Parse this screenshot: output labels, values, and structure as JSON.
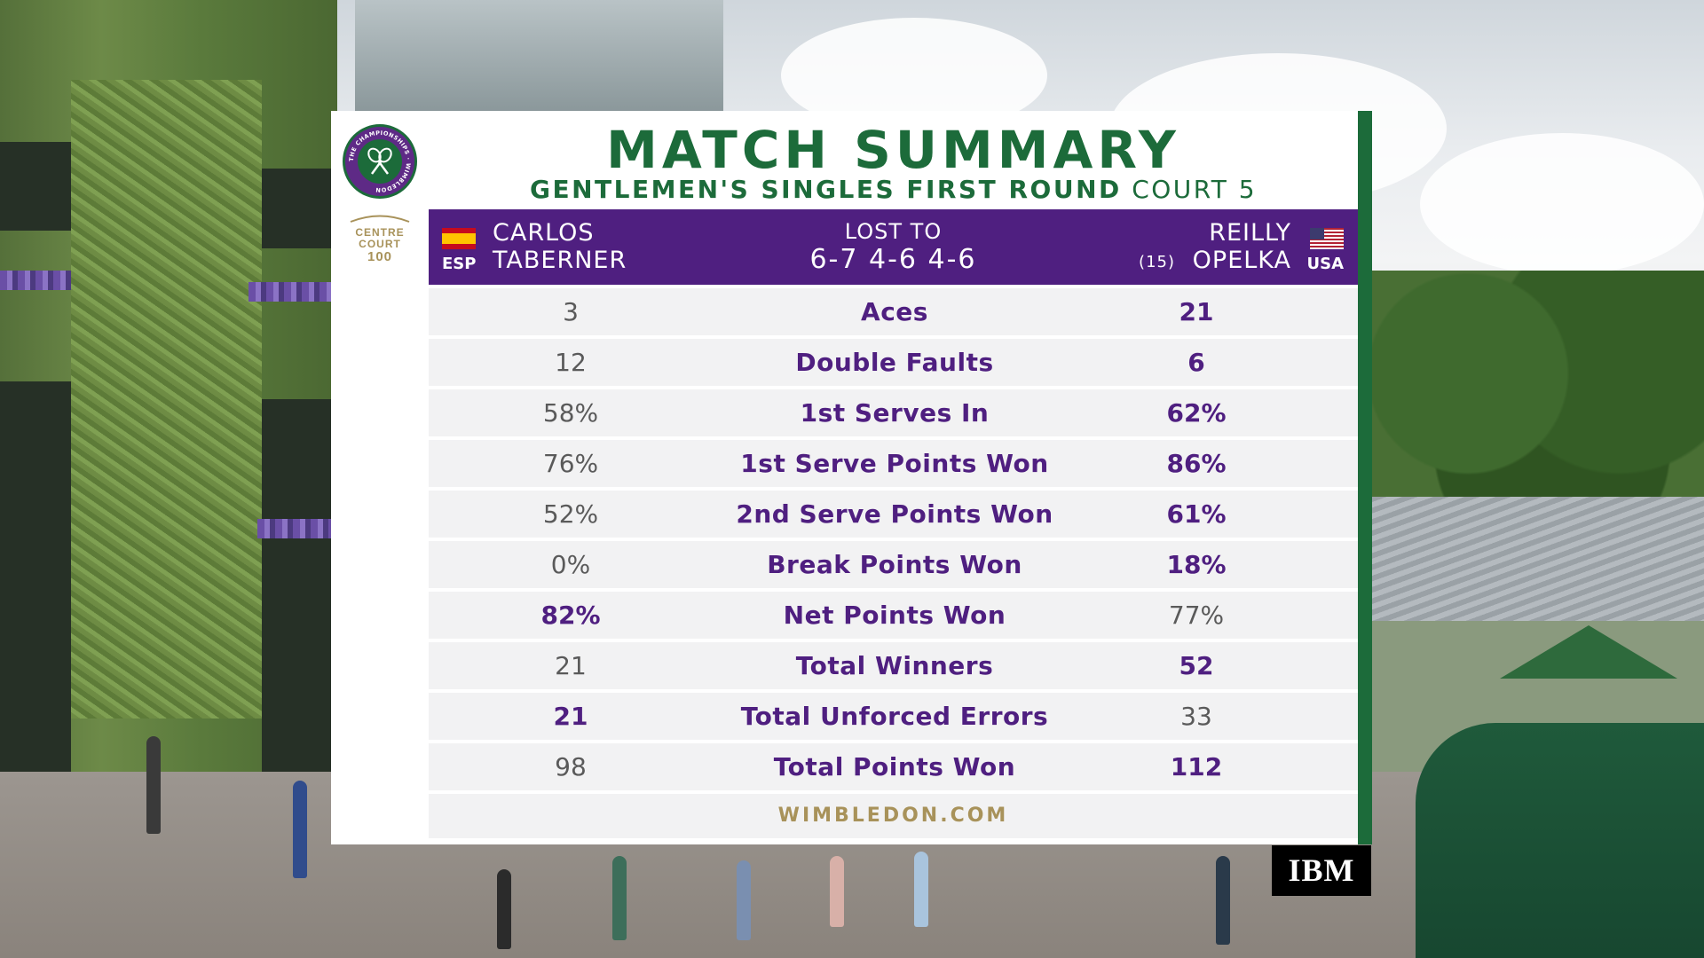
{
  "header": {
    "title": "MATCH SUMMARY",
    "event": "GENTLEMEN'S SINGLES FIRST ROUND",
    "court": "COURT 5"
  },
  "branding": {
    "logo_ring_text": "THE CHAMPIONSHIPS · WIMBLEDON",
    "centre_court_line1": "CENTRE",
    "centre_court_line2": "COURT",
    "centre_court_number": "100",
    "sponsor": "IBM",
    "website": "WIMBLEDON.COM"
  },
  "players": {
    "left": {
      "first": "CARLOS",
      "last": "TABERNER",
      "country": "ESP",
      "flag_icon": "spain-flag-icon"
    },
    "right": {
      "first": "REILLY",
      "last": "OPELKA",
      "country": "USA",
      "seed": "(15)",
      "flag_icon": "usa-flag-icon"
    }
  },
  "result": {
    "label": "LOST TO",
    "score": "6-7 4-6 4-6"
  },
  "stats": [
    {
      "label": "Aces",
      "left": "3",
      "right": "21",
      "leader": "right"
    },
    {
      "label": "Double Faults",
      "left": "12",
      "right": "6",
      "leader": "right"
    },
    {
      "label": "1st Serves In",
      "left": "58%",
      "right": "62%",
      "leader": "right"
    },
    {
      "label": "1st Serve Points Won",
      "left": "76%",
      "right": "86%",
      "leader": "right"
    },
    {
      "label": "2nd Serve Points Won",
      "left": "52%",
      "right": "61%",
      "leader": "right"
    },
    {
      "label": "Break Points Won",
      "left": "0%",
      "right": "18%",
      "leader": "right"
    },
    {
      "label": "Net Points Won",
      "left": "82%",
      "right": "77%",
      "leader": "left"
    },
    {
      "label": "Total Winners",
      "left": "21",
      "right": "52",
      "leader": "right"
    },
    {
      "label": "Total Unforced Errors",
      "left": "21",
      "right": "33",
      "leader": "left"
    },
    {
      "label": "Total Points Won",
      "left": "98",
      "right": "112",
      "leader": "right"
    }
  ],
  "colors": {
    "purple": "#4f1f80",
    "green": "#1c6b3a",
    "gold": "#a8925a",
    "row_bg": "#f2f2f3"
  }
}
